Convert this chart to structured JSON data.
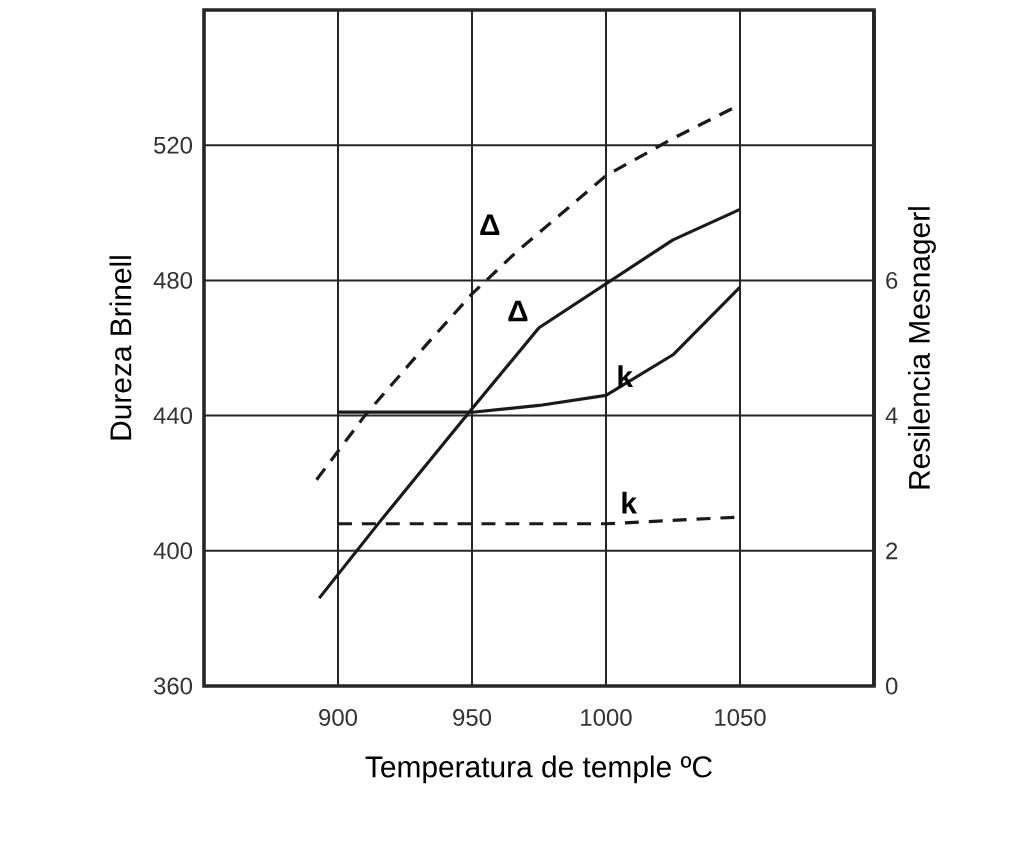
{
  "chart_data": {
    "type": "line",
    "xlabel": "Temperatura de temple ºC",
    "ylabel": "Dureza Brinell",
    "y2label": "Resilencia Mesnagerl",
    "xlim": [
      850,
      1100
    ],
    "xticks": [
      900,
      950,
      1000,
      1050
    ],
    "ylim": [
      360,
      560
    ],
    "yticks": [
      360,
      400,
      440,
      480,
      520
    ],
    "y2lim": [
      0,
      10
    ],
    "y2ticks": [
      0,
      2,
      4,
      6
    ],
    "grid": true,
    "series": [
      {
        "name": "Δ",
        "color": "#1a1a1a",
        "line_style": "dashed",
        "x": [
          892,
          910,
          933,
          950,
          966,
          1000,
          1025,
          1050
        ],
        "values": [
          421,
          440,
          461,
          476,
          488,
          511,
          522,
          532
        ]
      },
      {
        "name": "Δ",
        "color": "#1a1a1a",
        "line_style": "solid",
        "x": [
          893,
          916,
          950,
          975,
          1000,
          1025,
          1050
        ],
        "values": [
          386,
          409,
          442,
          466,
          479,
          492,
          501
        ]
      },
      {
        "name": "k",
        "color": "#1a1a1a",
        "line_style": "solid",
        "axis": "y2",
        "x": [
          900,
          950,
          975,
          1000,
          1025,
          1050
        ],
        "values": [
          4.05,
          4.05,
          4.15,
          4.3,
          4.9,
          5.9
        ]
      },
      {
        "name": "k",
        "color": "#1a1a1a",
        "line_style": "dashed",
        "axis": "y2",
        "x": [
          900,
          950,
          1000,
          1050
        ],
        "values": [
          2.4,
          2.4,
          2.4,
          2.5
        ]
      }
    ]
  }
}
